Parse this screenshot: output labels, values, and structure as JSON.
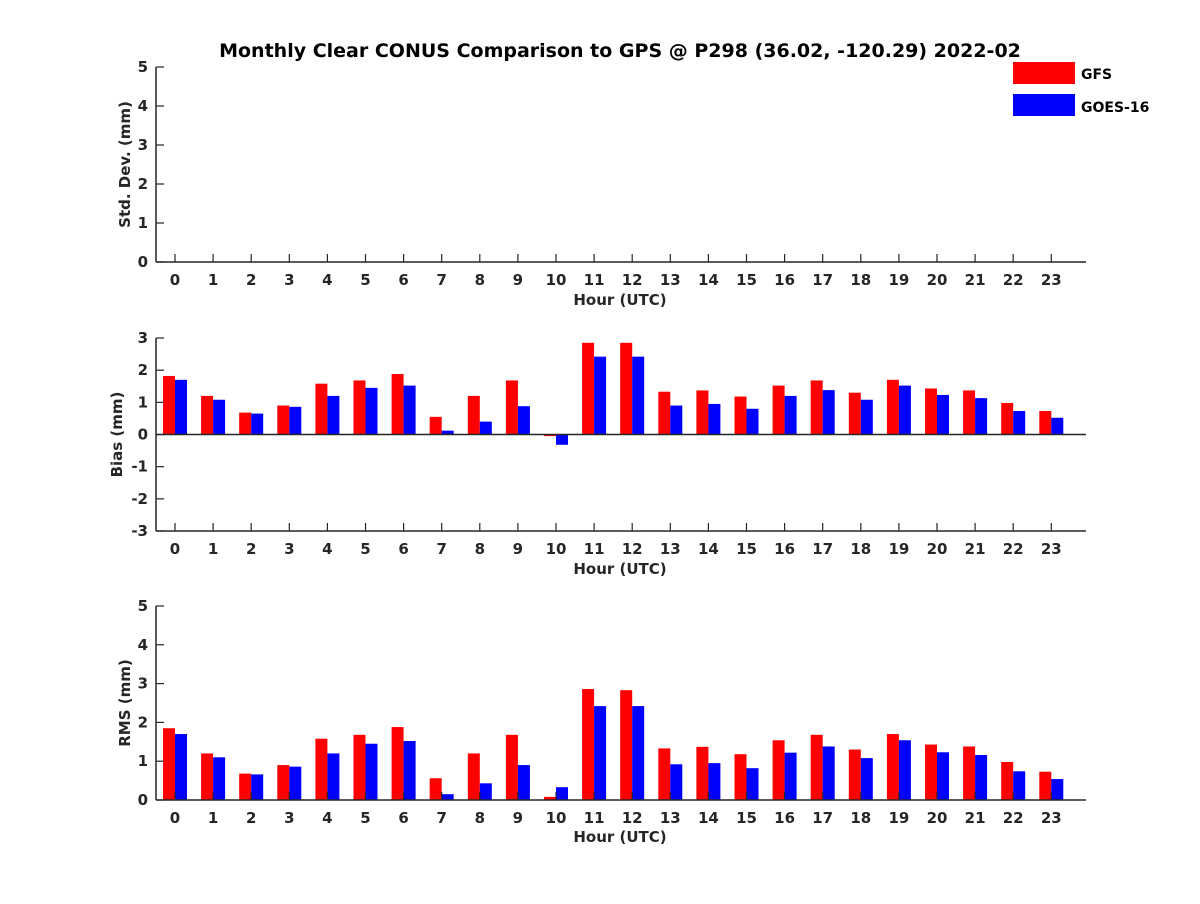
{
  "title": "Monthly Clear CONUS Comparison to GPS @ P298 (36.02, -120.29) 2022-02",
  "legend": [
    {
      "name": "GFS",
      "color": "#ff0000"
    },
    {
      "name": "GOES-16",
      "color": "#0000ff"
    }
  ],
  "chart_data": [
    {
      "type": "bar",
      "title": "Monthly Clear CONUS Comparison to GPS @ P298 (36.02, -120.29) 2022-02",
      "xlabel": "Hour (UTC)",
      "ylabel": "Std. Dev. (mm)",
      "ylim": [
        0,
        5
      ],
      "yticks": [
        0,
        1,
        2,
        3,
        4,
        5
      ],
      "categories": [
        "0",
        "1",
        "2",
        "3",
        "4",
        "5",
        "6",
        "7",
        "8",
        "9",
        "10",
        "11",
        "12",
        "13",
        "14",
        "15",
        "16",
        "17",
        "18",
        "19",
        "20",
        "21",
        "22",
        "23"
      ],
      "series": [
        {
          "name": "GFS",
          "color": "#ff0000",
          "values": [
            0,
            0,
            0,
            0,
            0,
            0,
            0,
            0,
            0,
            0,
            0,
            0,
            0,
            0,
            0,
            0,
            0,
            0,
            0,
            0,
            0,
            0,
            0,
            0
          ]
        },
        {
          "name": "GOES-16",
          "color": "#0000ff",
          "values": [
            0,
            0,
            0,
            0,
            0,
            0,
            0,
            0,
            0,
            0,
            0,
            0,
            0,
            0,
            0,
            0,
            0,
            0,
            0,
            0,
            0,
            0,
            0,
            0
          ]
        }
      ],
      "legend_position": "top-right",
      "grid": false
    },
    {
      "type": "bar",
      "xlabel": "Hour (UTC)",
      "ylabel": "Bias (mm)",
      "ylim": [
        -3,
        3
      ],
      "yticks": [
        -3,
        -2,
        -1,
        0,
        1,
        2,
        3
      ],
      "categories": [
        "0",
        "1",
        "2",
        "3",
        "4",
        "5",
        "6",
        "7",
        "8",
        "9",
        "10",
        "11",
        "12",
        "13",
        "14",
        "15",
        "16",
        "17",
        "18",
        "19",
        "20",
        "21",
        "22",
        "23"
      ],
      "series": [
        {
          "name": "GFS",
          "color": "#ff0000",
          "values": [
            1.82,
            1.2,
            0.68,
            0.9,
            1.58,
            1.68,
            1.88,
            0.55,
            1.2,
            1.68,
            -0.05,
            2.85,
            2.85,
            1.33,
            1.37,
            1.18,
            1.52,
            1.68,
            1.3,
            1.7,
            1.43,
            1.37,
            0.98,
            0.73
          ]
        },
        {
          "name": "GOES-16",
          "color": "#0000ff",
          "values": [
            1.7,
            1.08,
            0.65,
            0.86,
            1.2,
            1.45,
            1.52,
            0.12,
            0.4,
            0.88,
            -0.32,
            2.42,
            2.42,
            0.9,
            0.95,
            0.8,
            1.2,
            1.38,
            1.08,
            1.52,
            1.23,
            1.13,
            0.73,
            0.52
          ]
        }
      ],
      "grid": false
    },
    {
      "type": "bar",
      "xlabel": "Hour (UTC)",
      "ylabel": "RMS (mm)",
      "ylim": [
        0,
        5
      ],
      "yticks": [
        0,
        1,
        2,
        3,
        4,
        5
      ],
      "categories": [
        "0",
        "1",
        "2",
        "3",
        "4",
        "5",
        "6",
        "7",
        "8",
        "9",
        "10",
        "11",
        "12",
        "13",
        "14",
        "15",
        "16",
        "17",
        "18",
        "19",
        "20",
        "21",
        "22",
        "23"
      ],
      "series": [
        {
          "name": "GFS",
          "color": "#ff0000",
          "values": [
            1.85,
            1.2,
            0.68,
            0.9,
            1.58,
            1.68,
            1.88,
            0.56,
            1.2,
            1.68,
            0.08,
            2.86,
            2.83,
            1.33,
            1.37,
            1.18,
            1.54,
            1.68,
            1.3,
            1.7,
            1.43,
            1.38,
            0.98,
            0.73
          ]
        },
        {
          "name": "GOES-16",
          "color": "#0000ff",
          "values": [
            1.7,
            1.1,
            0.66,
            0.86,
            1.2,
            1.45,
            1.52,
            0.15,
            0.43,
            0.9,
            0.33,
            2.42,
            2.42,
            0.92,
            0.95,
            0.82,
            1.22,
            1.38,
            1.08,
            1.54,
            1.23,
            1.16,
            0.74,
            0.54
          ]
        }
      ],
      "grid": false
    }
  ]
}
